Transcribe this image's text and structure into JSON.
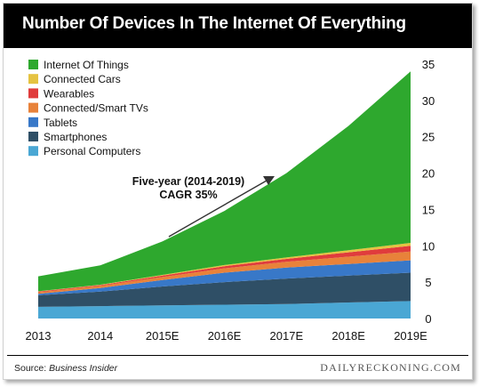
{
  "chart_data": {
    "type": "area",
    "stacked": true,
    "title": "Number Of Devices In The Internet Of Everything",
    "categories": [
      "2013",
      "2014",
      "2015E",
      "2016E",
      "2017E",
      "2018E",
      "2019E"
    ],
    "ylim": [
      0,
      35
    ],
    "yticks": [
      "0",
      "5",
      "10",
      "15",
      "20",
      "25",
      "30",
      "35"
    ],
    "ytick_values": [
      0,
      5,
      10,
      15,
      20,
      25,
      30,
      35
    ],
    "y_axis_side": "right",
    "legend_position": "top-left",
    "series": [
      {
        "name": "Personal Computers",
        "color": "#4aa7d4",
        "values": [
          1.6,
          1.7,
          1.8,
          1.9,
          2.0,
          2.2,
          2.4
        ]
      },
      {
        "name": "Smartphones",
        "color": "#2f4f66",
        "values": [
          1.6,
          2.0,
          2.6,
          3.1,
          3.5,
          3.7,
          3.9
        ]
      },
      {
        "name": "Tablets",
        "color": "#3878c8",
        "values": [
          0.2,
          0.5,
          0.9,
          1.3,
          1.5,
          1.6,
          1.7
        ]
      },
      {
        "name": "Connected/Smart TVs",
        "color": "#e8823a",
        "values": [
          0.2,
          0.3,
          0.4,
          0.6,
          0.8,
          1.0,
          1.2
        ]
      },
      {
        "name": "Wearables",
        "color": "#e03c3c",
        "values": [
          0.1,
          0.1,
          0.2,
          0.3,
          0.4,
          0.6,
          0.8
        ]
      },
      {
        "name": "Connected Cars",
        "color": "#e5c341",
        "values": [
          0.05,
          0.05,
          0.1,
          0.15,
          0.2,
          0.3,
          0.4
        ]
      },
      {
        "name": "Internet Of Things",
        "color": "#2ea82e",
        "values": [
          2.05,
          2.65,
          4.6,
          7.45,
          11.6,
          17.1,
          23.6
        ]
      }
    ],
    "annotation": {
      "line1": "Five-year (2014-2019)",
      "line2": "CAGR 35%"
    }
  },
  "footer": {
    "source_label": "Source:",
    "source_name": "Business Insider",
    "brand": "DAILYRECKONING.COM"
  }
}
